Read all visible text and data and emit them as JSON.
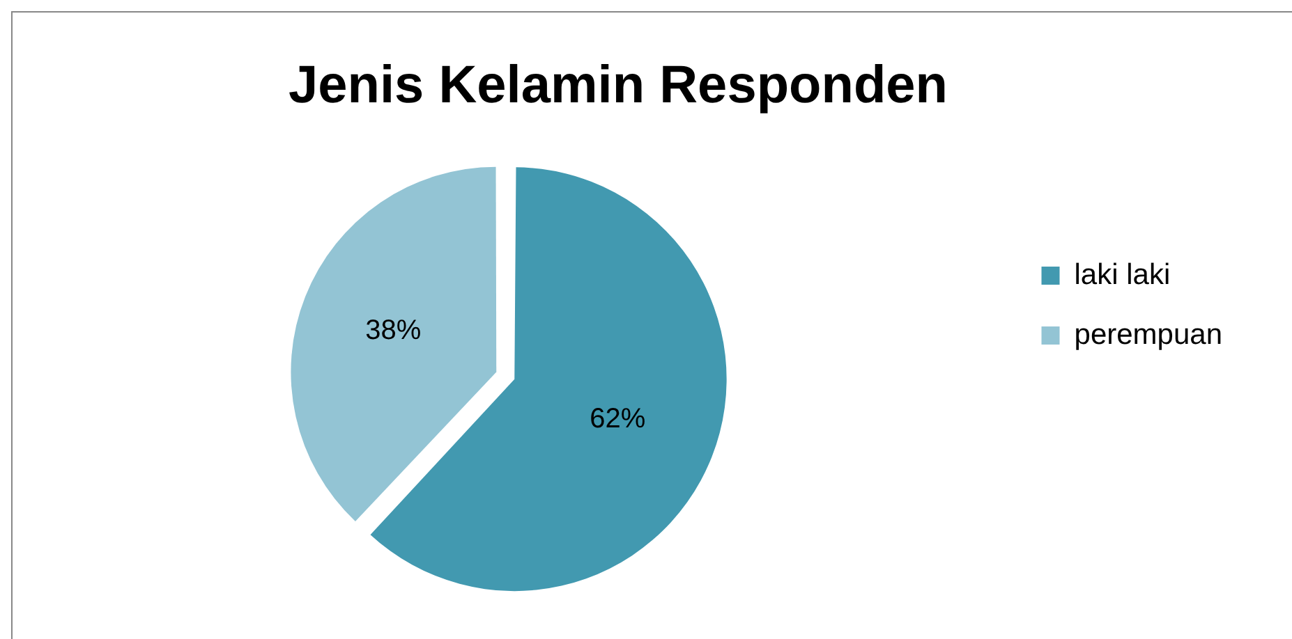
{
  "chart_data": {
    "type": "pie",
    "title": "Jenis Kelamin Responden",
    "categories": [
      "laki laki",
      "perempuan"
    ],
    "values": [
      62,
      38
    ],
    "colors": [
      "#4299b0",
      "#93c4d4"
    ],
    "value_labels": [
      "62%",
      "38%"
    ],
    "legend": "right"
  }
}
